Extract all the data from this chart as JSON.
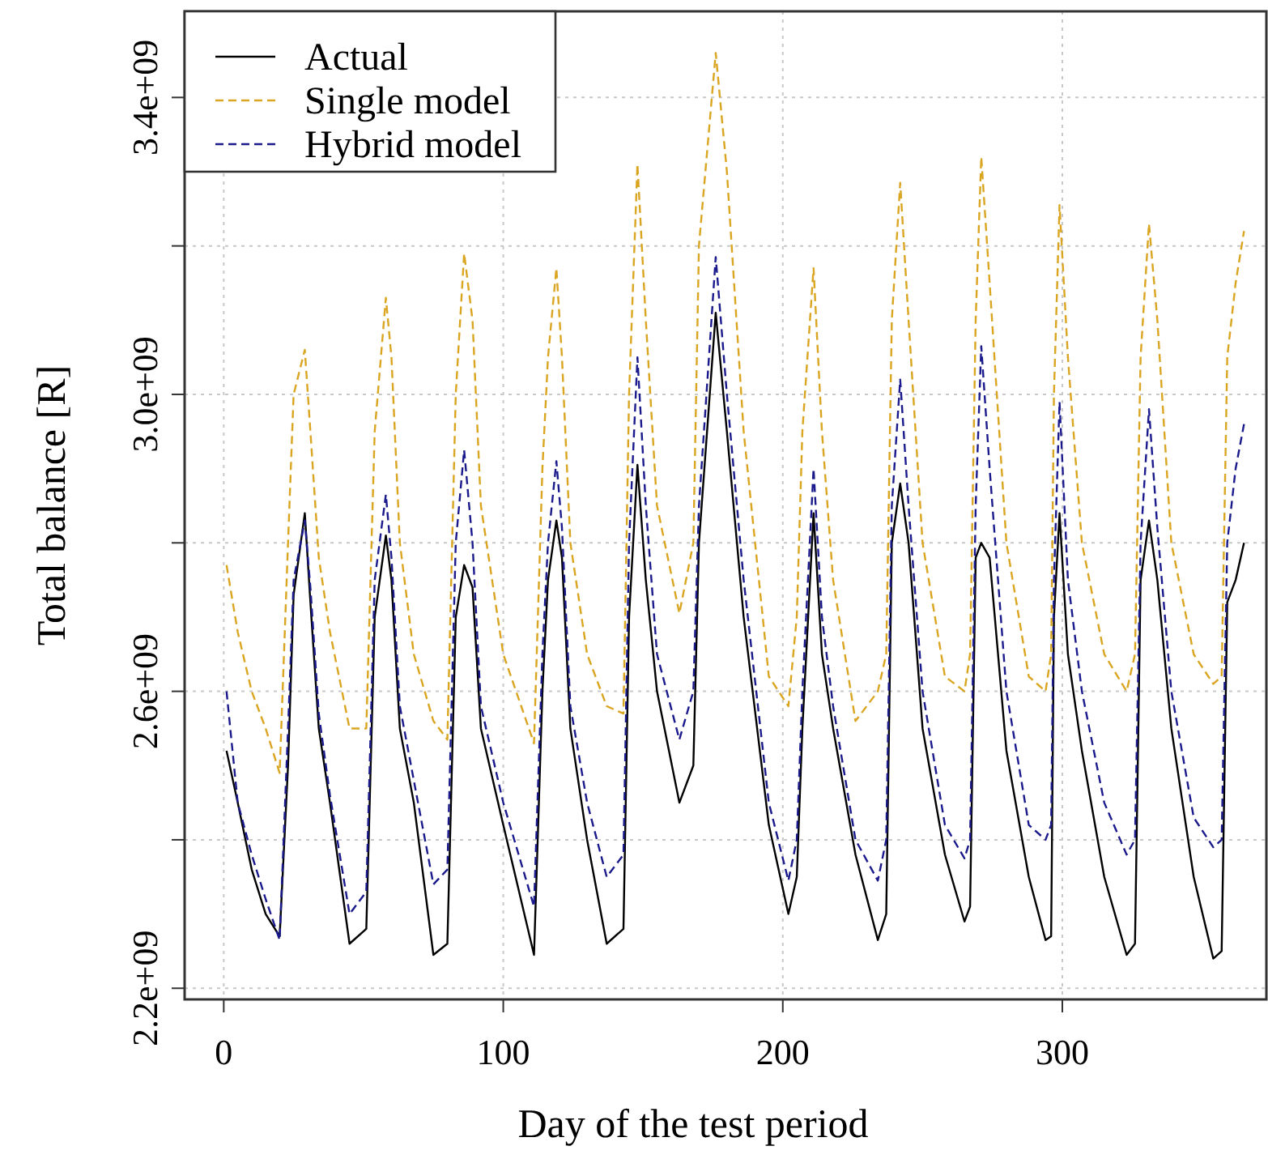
{
  "chart_data": {
    "type": "line",
    "xlabel": "Day of the test period",
    "ylabel": "Total balance [R]",
    "x": [
      1,
      5,
      10,
      15,
      20,
      23,
      25,
      29,
      31,
      34,
      38,
      45,
      51,
      54,
      58,
      60,
      63,
      68,
      75,
      80,
      83,
      86,
      89,
      92,
      100,
      111,
      114,
      116,
      119,
      121,
      124,
      130,
      137,
      143,
      145,
      148,
      151,
      155,
      163,
      168,
      170,
      176,
      180,
      186,
      195,
      202,
      205,
      207,
      211,
      214,
      218,
      226,
      234,
      237,
      239,
      242,
      245,
      250,
      258,
      265,
      267,
      269,
      271,
      274,
      280,
      288,
      294,
      296,
      297,
      299,
      302,
      307,
      315,
      323,
      326,
      328,
      331,
      334,
      339,
      347,
      354,
      357,
      359,
      362,
      365
    ],
    "series": [
      {
        "name": "Actual",
        "color": "#000000",
        "line_style": "solid",
        "values": [
          2520000000.0,
          2450000000.0,
          2360000000.0,
          2300000000.0,
          2270000000.0,
          2500000000.0,
          2730000000.0,
          2840000000.0,
          2720000000.0,
          2550000000.0,
          2450000000.0,
          2260000000.0,
          2280000000.0,
          2700000000.0,
          2810000000.0,
          2750000000.0,
          2550000000.0,
          2450000000.0,
          2245000000.0,
          2260000000.0,
          2700000000.0,
          2770000000.0,
          2740000000.0,
          2550000000.0,
          2420000000.0,
          2245000000.0,
          2600000000.0,
          2750000000.0,
          2830000000.0,
          2780000000.0,
          2550000000.0,
          2400000000.0,
          2260000000.0,
          2280000000.0,
          2700000000.0,
          2905000000.0,
          2750000000.0,
          2600000000.0,
          2450000000.0,
          2500000000.0,
          2800000000.0,
          3110000000.0,
          2950000000.0,
          2700000000.0,
          2420000000.0,
          2300000000.0,
          2350000000.0,
          2550000000.0,
          2840000000.0,
          2650000000.0,
          2550000000.0,
          2380000000.0,
          2265000000.0,
          2300000000.0,
          2800000000.0,
          2880000000.0,
          2800000000.0,
          2550000000.0,
          2380000000.0,
          2290000000.0,
          2310000000.0,
          2780000000.0,
          2800000000.0,
          2780000000.0,
          2520000000.0,
          2350000000.0,
          2265000000.0,
          2270000000.0,
          2700000000.0,
          2840000000.0,
          2650000000.0,
          2520000000.0,
          2350000000.0,
          2245000000.0,
          2260000000.0,
          2750000000.0,
          2830000000.0,
          2750000000.0,
          2550000000.0,
          2350000000.0,
          2240000000.0,
          2250000000.0,
          2720000000.0,
          2750000000.0,
          2800000000.0
        ]
      },
      {
        "name": "Single model",
        "color": "#daa520",
        "line_style": "dashed",
        "values": [
          2770000000.0,
          2680000000.0,
          2600000000.0,
          2550000000.0,
          2490000000.0,
          2800000000.0,
          3000000000.0,
          3060000000.0,
          2950000000.0,
          2780000000.0,
          2680000000.0,
          2550000000.0,
          2550000000.0,
          2950000000.0,
          3130000000.0,
          3050000000.0,
          2800000000.0,
          2650000000.0,
          2560000000.0,
          2535000000.0,
          3000000000.0,
          3190000000.0,
          3100000000.0,
          2850000000.0,
          2650000000.0,
          2530000000.0,
          2900000000.0,
          3050000000.0,
          3170000000.0,
          3050000000.0,
          2800000000.0,
          2650000000.0,
          2580000000.0,
          2570000000.0,
          3000000000.0,
          3310000000.0,
          3100000000.0,
          2850000000.0,
          2705000000.0,
          2800000000.0,
          3200000000.0,
          3460000000.0,
          3300000000.0,
          2950000000.0,
          2620000000.0,
          2580000000.0,
          2700000000.0,
          2950000000.0,
          3170000000.0,
          2950000000.0,
          2750000000.0,
          2560000000.0,
          2600000000.0,
          2650000000.0,
          3100000000.0,
          3285000000.0,
          3100000000.0,
          2800000000.0,
          2620000000.0,
          2600000000.0,
          2650000000.0,
          3100000000.0,
          3320000000.0,
          3150000000.0,
          2800000000.0,
          2620000000.0,
          2600000000.0,
          2650000000.0,
          3000000000.0,
          3255000000.0,
          3050000000.0,
          2800000000.0,
          2650000000.0,
          2600000000.0,
          2650000000.0,
          3050000000.0,
          3230000000.0,
          3100000000.0,
          2800000000.0,
          2650000000.0,
          2610000000.0,
          2620000000.0,
          3050000000.0,
          3150000000.0,
          3220000000.0
        ]
      },
      {
        "name": "Hybrid model",
        "color": "#1a1a8c",
        "line_style": "dashed",
        "values": [
          2600000000.0,
          2450000000.0,
          2380000000.0,
          2320000000.0,
          2265000000.0,
          2550000000.0,
          2750000000.0,
          2830000000.0,
          2740000000.0,
          2570000000.0,
          2460000000.0,
          2300000000.0,
          2330000000.0,
          2750000000.0,
          2865000000.0,
          2780000000.0,
          2580000000.0,
          2480000000.0,
          2340000000.0,
          2360000000.0,
          2800000000.0,
          2925000000.0,
          2800000000.0,
          2580000000.0,
          2450000000.0,
          2310000000.0,
          2650000000.0,
          2800000000.0,
          2910000000.0,
          2820000000.0,
          2580000000.0,
          2450000000.0,
          2350000000.0,
          2380000000.0,
          2800000000.0,
          3050000000.0,
          2850000000.0,
          2650000000.0,
          2535000000.0,
          2600000000.0,
          2850000000.0,
          3185000000.0,
          3000000000.0,
          2750000000.0,
          2450000000.0,
          2345000000.0,
          2400000000.0,
          2600000000.0,
          2900000000.0,
          2700000000.0,
          2580000000.0,
          2400000000.0,
          2345000000.0,
          2400000000.0,
          2850000000.0,
          3020000000.0,
          2850000000.0,
          2600000000.0,
          2420000000.0,
          2375000000.0,
          2400000000.0,
          2850000000.0,
          3065000000.0,
          2900000000.0,
          2600000000.0,
          2420000000.0,
          2400000000.0,
          2420000000.0,
          2750000000.0,
          2990000000.0,
          2750000000.0,
          2600000000.0,
          2450000000.0,
          2380000000.0,
          2400000000.0,
          2800000000.0,
          2980000000.0,
          2820000000.0,
          2600000000.0,
          2430000000.0,
          2390000000.0,
          2400000000.0,
          2800000000.0,
          2900000000.0,
          2960000000.0
        ]
      }
    ],
    "xlim": [
      -14,
      373
    ],
    "xticks": [
      0,
      100,
      200,
      300
    ],
    "ylim": [
      2185000000.0,
      3516000000.0
    ],
    "yticks": [
      {
        "value": 2200000000.0,
        "label": "2.2e+09"
      },
      {
        "value": 2400000000.0,
        "label": null
      },
      {
        "value": 2600000000.0,
        "label": "2.6e+09"
      },
      {
        "value": 2800000000.0,
        "label": null
      },
      {
        "value": 3000000000.0,
        "label": "3.0e+09"
      },
      {
        "value": 3200000000.0,
        "label": null
      },
      {
        "value": 3400000000.0,
        "label": "3.4e+09"
      }
    ],
    "grid": true,
    "legend": "top left"
  }
}
